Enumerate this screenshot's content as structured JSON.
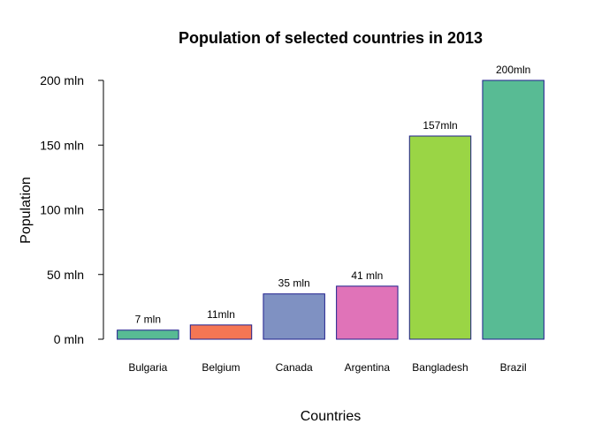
{
  "chart_data": {
    "type": "bar",
    "title": "Population of selected countries in 2013",
    "xlabel": "Countries",
    "ylabel": "Population",
    "categories": [
      "Bulgaria",
      "Belgium",
      "Canada",
      "Argentina",
      "Bangladesh",
      "Brazil"
    ],
    "values": [
      7,
      11,
      35,
      41,
      157,
      200
    ],
    "data_labels": [
      "7 mln",
      "11mln",
      "35 mln",
      "41 mln",
      "157mln",
      "200mln"
    ],
    "unit": "mln",
    "ylim": [
      0,
      200
    ],
    "yticks": [
      0,
      50,
      100,
      150,
      200
    ],
    "ytick_labels": [
      "0 mln",
      "50 mln",
      "100 mln",
      "150 mln",
      "200 mln"
    ],
    "grid": false,
    "bar_colors": [
      "#58BB94",
      "#F57654",
      "#7F91C2",
      "#E073B8",
      "#9AD545",
      "#58BB94"
    ],
    "bar_border_color": "#1E1E8C"
  }
}
